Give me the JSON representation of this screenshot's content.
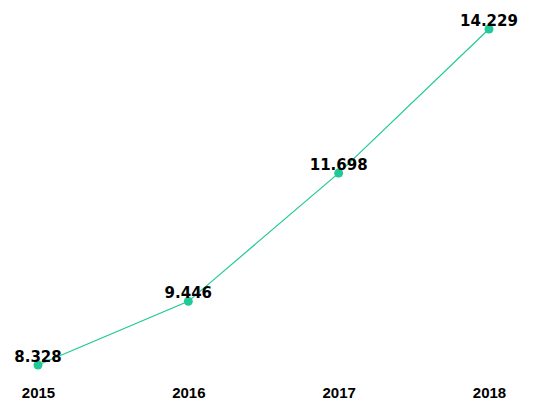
{
  "chart_data": {
    "type": "line",
    "categories": [
      "2015",
      "2016",
      "2017",
      "2018"
    ],
    "values": [
      8.328,
      9.446,
      11.698,
      14.229
    ],
    "color": "#20c997",
    "marker": "circle",
    "line_style": "solid",
    "data_labels": true,
    "tick_labels": "x",
    "grid": false
  }
}
